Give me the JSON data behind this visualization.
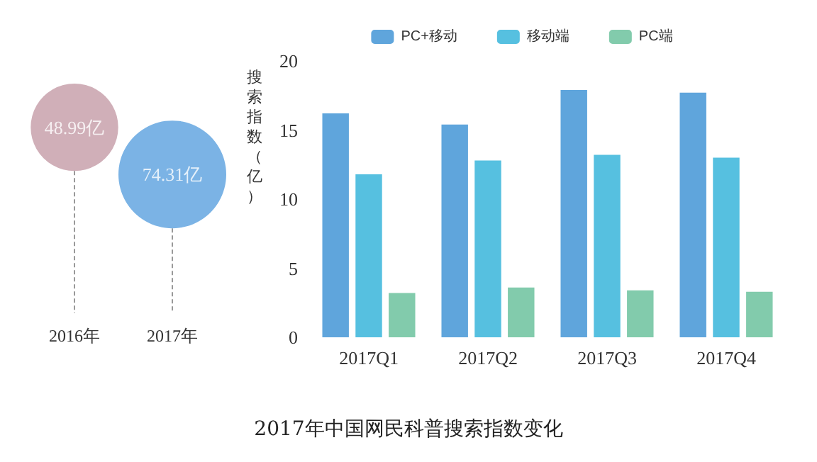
{
  "chart_data": [
    {
      "type": "other",
      "categories": [
        "2016年",
        "2017年"
      ],
      "values": [
        48.99,
        74.31
      ],
      "value_labels": [
        "48.99亿",
        "74.31亿"
      ],
      "colors": [
        "#c49ba6",
        "#5aa0de"
      ]
    },
    {
      "type": "bar",
      "title": "2017年中国网民科普搜索指数变化",
      "ylabel": "搜索指数（亿）",
      "categories": [
        "2017Q1",
        "2017Q2",
        "2017Q3",
        "2017Q4"
      ],
      "series": [
        {
          "name": "PC+移动",
          "color": "#5fa5dc",
          "values": [
            16.2,
            15.4,
            17.9,
            17.7
          ]
        },
        {
          "name": "移动端",
          "color": "#56c0e0",
          "values": [
            11.8,
            12.8,
            13.2,
            13.0
          ]
        },
        {
          "name": "PC端",
          "color": "#82cbac",
          "values": [
            3.2,
            3.6,
            3.4,
            3.3
          ]
        }
      ],
      "ylim": [
        0,
        20
      ],
      "yticks": [
        0,
        5,
        10,
        15,
        20
      ],
      "grid": false,
      "legend": "top"
    }
  ]
}
